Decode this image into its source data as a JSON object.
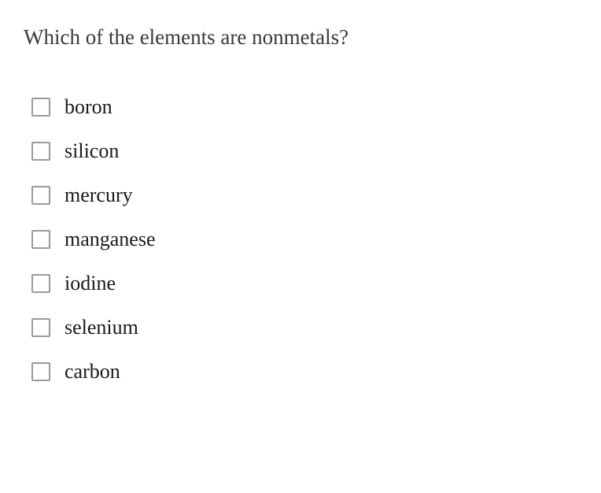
{
  "question": {
    "text": "Which of the elements are nonmetals?",
    "text_color": "#3a3a3a",
    "font_size": 27
  },
  "options": [
    {
      "label": "boron",
      "checked": false
    },
    {
      "label": "silicon",
      "checked": false
    },
    {
      "label": "mercury",
      "checked": false
    },
    {
      "label": "manganese",
      "checked": false
    },
    {
      "label": "iodine",
      "checked": false
    },
    {
      "label": "selenium",
      "checked": false
    },
    {
      "label": "carbon",
      "checked": false
    }
  ],
  "styling": {
    "background_color": "#ffffff",
    "checkbox_border_color": "#9a9a9a",
    "checkbox_size": 24,
    "option_font_size": 26,
    "option_text_color": "#1a1a1a",
    "option_gap": 26
  }
}
